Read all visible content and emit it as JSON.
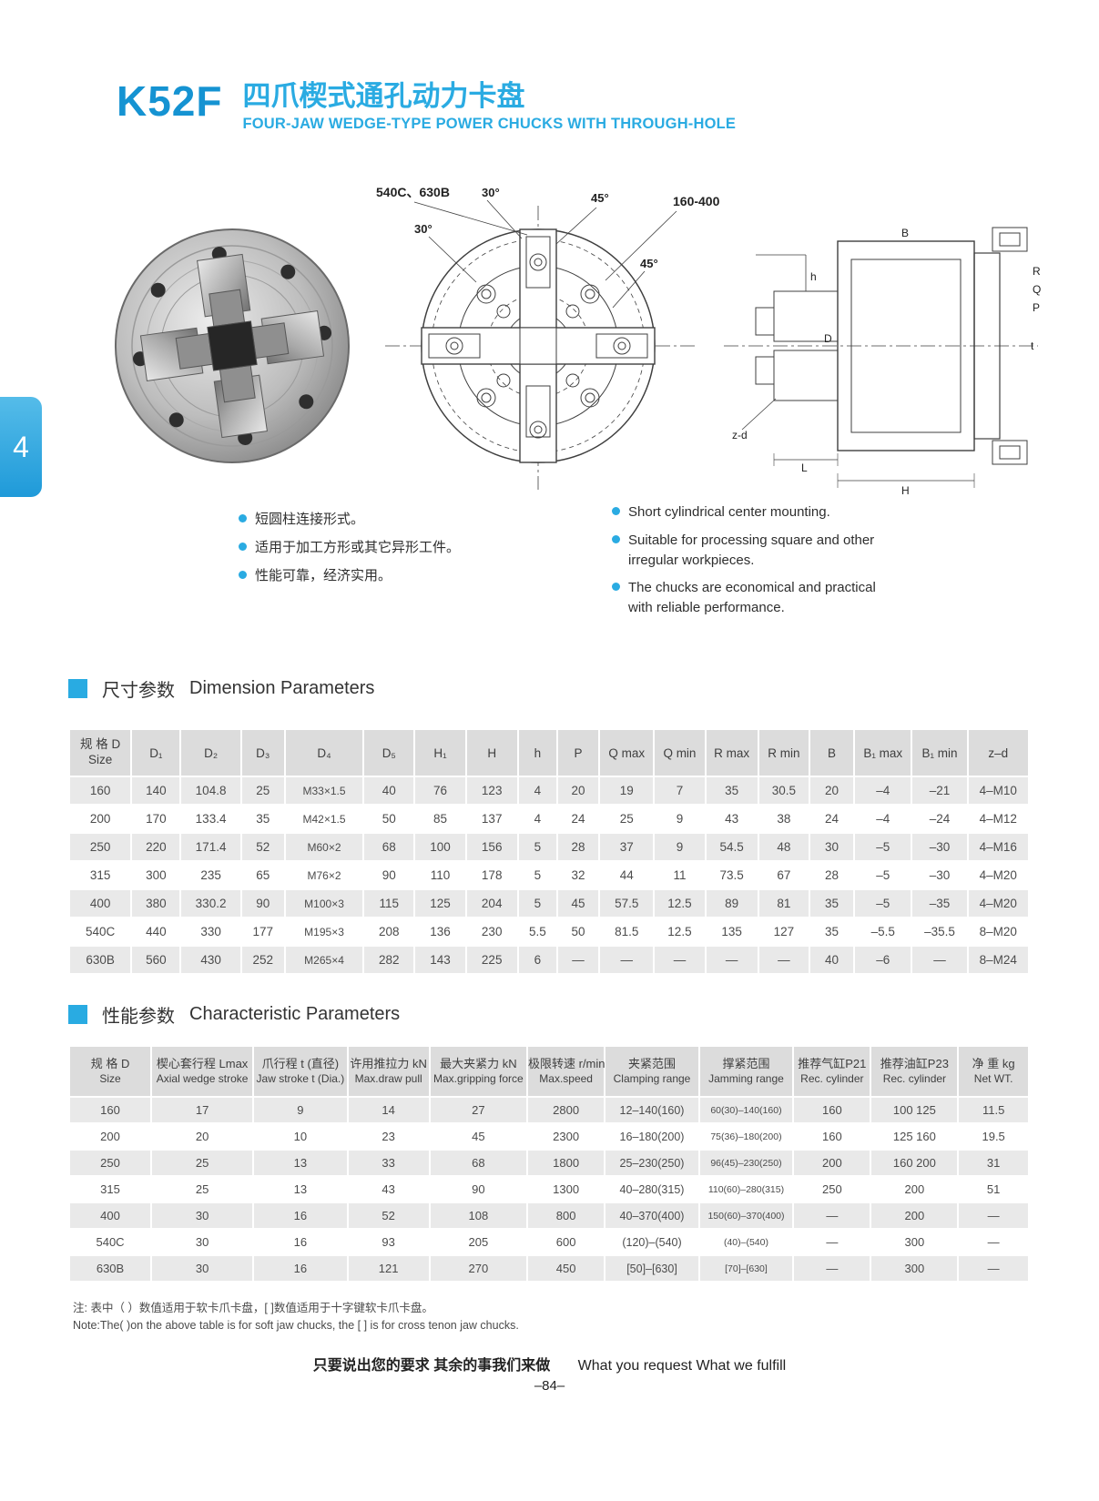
{
  "page": {
    "model": "K52F",
    "title_zh": "四爪楔式通孔动力卡盘",
    "title_en": "FOUR-JAW WEDGE-TYPE POWER CHUCKS WITH THROUGH-HOLE",
    "side_tab": "4",
    "accent_color": "#29abe2"
  },
  "figures": {
    "front_label": "540C、630B",
    "front_angle_a": "30°",
    "front_angle_b": "45°",
    "front_angle_c": "30°",
    "front_range": "160-400",
    "front_angle_d": "45°",
    "side_zd": "z-d",
    "side_L": "L",
    "side_H": "H",
    "side_h": "h",
    "side_B": "B",
    "side_t": "t",
    "side_R": "R",
    "side_Q": "Q",
    "side_P": "P",
    "side_D": "D"
  },
  "features": {
    "zh": [
      "短圆柱连接形式。",
      "适用于加工方形或其它异形工件。",
      "性能可靠，经济实用。"
    ],
    "en": [
      "Short cylindrical center mounting.",
      "Suitable for processing square and other irregular workpieces.",
      "The chucks are economical and practical with reliable performance."
    ]
  },
  "dimension_table": {
    "title_zh": "尺寸参数",
    "title_en": "Dimension Parameters",
    "col0_zh": "规 格 D",
    "col0_en": "Size",
    "headers": [
      "D₁",
      "D₂",
      "D₃",
      "D₄",
      "D₅",
      "H₁",
      "H",
      "h",
      "P",
      "Q max",
      "Q min",
      "R max",
      "R min",
      "B",
      "B₁ max",
      "B₁ min",
      "z–d"
    ],
    "rows": [
      [
        "160",
        "140",
        "104.8",
        "25",
        "M33×1.5",
        "40",
        "76",
        "123",
        "4",
        "20",
        "19",
        "7",
        "35",
        "30.5",
        "20",
        "–4",
        "–21",
        "4–M10"
      ],
      [
        "200",
        "170",
        "133.4",
        "35",
        "M42×1.5",
        "50",
        "85",
        "137",
        "4",
        "24",
        "25",
        "9",
        "43",
        "38",
        "24",
        "–4",
        "–24",
        "4–M12"
      ],
      [
        "250",
        "220",
        "171.4",
        "52",
        "M60×2",
        "68",
        "100",
        "156",
        "5",
        "28",
        "37",
        "9",
        "54.5",
        "48",
        "30",
        "–5",
        "–30",
        "4–M16"
      ],
      [
        "315",
        "300",
        "235",
        "65",
        "M76×2",
        "90",
        "110",
        "178",
        "5",
        "32",
        "44",
        "11",
        "73.5",
        "67",
        "28",
        "–5",
        "–30",
        "4–M20"
      ],
      [
        "400",
        "380",
        "330.2",
        "90",
        "M100×3",
        "115",
        "125",
        "204",
        "5",
        "45",
        "57.5",
        "12.5",
        "89",
        "81",
        "35",
        "–5",
        "–35",
        "4–M20"
      ],
      [
        "540C",
        "440",
        "330",
        "177",
        "M195×3",
        "208",
        "136",
        "230",
        "5.5",
        "50",
        "81.5",
        "12.5",
        "135",
        "127",
        "35",
        "–5.5",
        "–35.5",
        "8–M20"
      ],
      [
        "630B",
        "560",
        "430",
        "252",
        "M265×4",
        "282",
        "143",
        "225",
        "6",
        "—",
        "—",
        "—",
        "—",
        "—",
        "40",
        "–6",
        "—",
        "8–M24"
      ]
    ]
  },
  "characteristic_table": {
    "title_zh": "性能参数",
    "title_en": "Characteristic Parameters",
    "headers": [
      {
        "zh": "规 格 D",
        "en": "Size"
      },
      {
        "zh": "楔心套行程 Lmax",
        "en": "Axial wedge stroke"
      },
      {
        "zh": "爪行程 t (直径)",
        "en": "Jaw stroke t (Dia.)"
      },
      {
        "zh": "许用推拉力 kN",
        "en": "Max.draw pull"
      },
      {
        "zh": "最大夹紧力 kN",
        "en": "Max.gripping force"
      },
      {
        "zh": "极限转速 r/min",
        "en": "Max.speed"
      },
      {
        "zh": "夹紧范围",
        "en": "Clamping range"
      },
      {
        "zh": "撑紧范围",
        "en": "Jamming range"
      },
      {
        "zh": "推荐气缸P21",
        "en": "Rec. cylinder"
      },
      {
        "zh": "推荐油缸P23",
        "en": "Rec. cylinder"
      },
      {
        "zh": "净 重 kg",
        "en": "Net WT."
      }
    ],
    "rows": [
      [
        "160",
        "17",
        "9",
        "14",
        "27",
        "2800",
        "12–140(160)",
        "60(30)–140(160)",
        "160",
        "100 125",
        "11.5"
      ],
      [
        "200",
        "20",
        "10",
        "23",
        "45",
        "2300",
        "16–180(200)",
        "75(36)–180(200)",
        "160",
        "125 160",
        "19.5"
      ],
      [
        "250",
        "25",
        "13",
        "33",
        "68",
        "1800",
        "25–230(250)",
        "96(45)–230(250)",
        "200",
        "160 200",
        "31"
      ],
      [
        "315",
        "25",
        "13",
        "43",
        "90",
        "1300",
        "40–280(315)",
        "110(60)–280(315)",
        "250",
        "200",
        "51"
      ],
      [
        "400",
        "30",
        "16",
        "52",
        "108",
        "800",
        "40–370(400)",
        "150(60)–370(400)",
        "—",
        "200",
        "—"
      ],
      [
        "540C",
        "30",
        "16",
        "93",
        "205",
        "600",
        "(120)–(540)",
        "(40)–(540)",
        "—",
        "300",
        "—"
      ],
      [
        "630B",
        "30",
        "16",
        "121",
        "270",
        "450",
        "[50]–[630]",
        "[70]–[630]",
        "—",
        "300",
        "—"
      ]
    ]
  },
  "note": {
    "zh": "注: 表中（ ）数值适用于软卡爪卡盘，[ ]数值适用于十字键软卡爪卡盘。",
    "en": "Note:The(  )on the above table is for soft jaw chucks, the [  ] is for cross tenon jaw chucks."
  },
  "footer": {
    "slogan_zh": "只要说出您的要求  其余的事我们来做",
    "slogan_en": "What you request  What we fulfill",
    "page_number": "–84–"
  }
}
